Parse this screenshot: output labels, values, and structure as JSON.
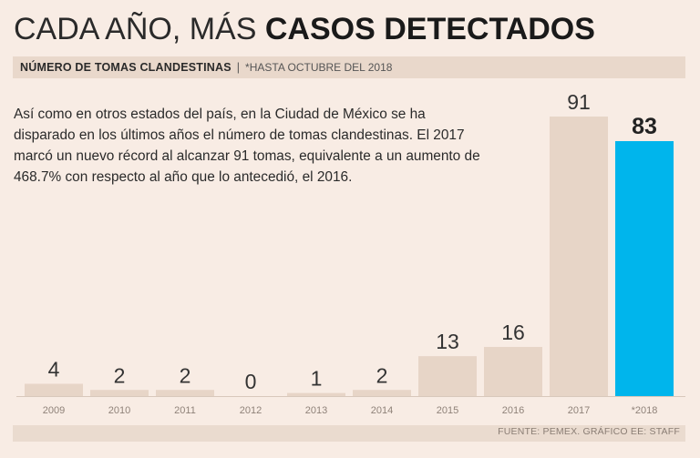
{
  "header": {
    "title_light": "CADA AÑO, MÁS ",
    "title_bold": "CASOS DETECTADOS",
    "subtitle_bold": "NÚMERO DE TOMAS CLANDESTINAS",
    "subtitle_sep": "|",
    "subtitle_note": "*HASTA OCTUBRE DEL 2018"
  },
  "description": "Así como en otros estados del país, en la Ciudad de México se ha disparado en los últimos años el número de tomas clandestinas. El 2017 marcó un nuevo récord al alcanzar 91 tomas, equivalente a un aumento de 468.7% con respecto al año que lo antecedió, el 2016.",
  "footer": {
    "source": "FUENTE: PEMEX. GRÁFICO EE: STAFF"
  },
  "colors": {
    "background": "#f8ece4",
    "bar_default": "#e7d5c7",
    "bar_highlight": "#00b5ec",
    "axis_line": "#d8c8bb",
    "value_label": "#333333",
    "tick_label": "#8f8279"
  },
  "chart_data": {
    "type": "bar",
    "title": "CADA AÑO, MÁS CASOS DETECTADOS",
    "subtitle": "NÚMERO DE TOMAS CLANDESTINAS | *HASTA OCTUBRE DEL 2018",
    "xlabel": "",
    "ylabel": "",
    "categories": [
      "2009",
      "2010",
      "2011",
      "2012",
      "2013",
      "2014",
      "2015",
      "2016",
      "2017",
      "*2018"
    ],
    "values": [
      4,
      2,
      2,
      0,
      1,
      2,
      13,
      16,
      91,
      83
    ],
    "value_labels": [
      "4",
      "2",
      "2",
      "0",
      "1",
      "2",
      "13",
      "16",
      "91",
      "83"
    ],
    "highlight_index": 9,
    "ylim": [
      0,
      91
    ],
    "grid": false,
    "legend": "none"
  }
}
